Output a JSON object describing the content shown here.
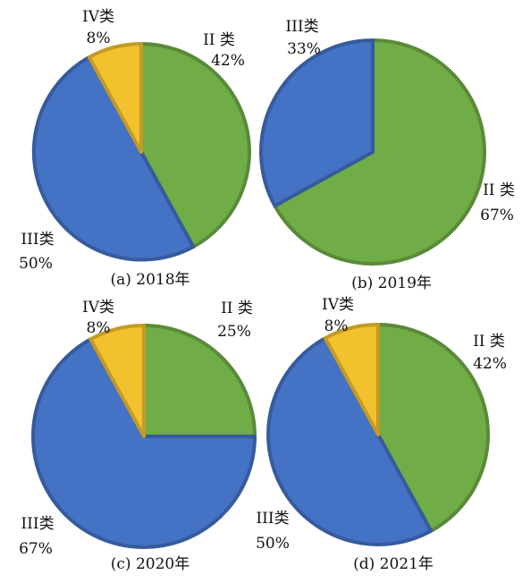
{
  "chart_data": [
    {
      "type": "pie",
      "caption": "(a) 2018年",
      "slices": [
        {
          "label": "II 类",
          "value": 42,
          "pct_text": "42%",
          "color": "#70ad47"
        },
        {
          "label": "III类",
          "value": 50,
          "pct_text": "50%",
          "color": "#4472c4"
        },
        {
          "label": "IV类",
          "value": 8,
          "pct_text": "8%",
          "color": "#f2c12e"
        }
      ]
    },
    {
      "type": "pie",
      "caption": "(b) 2019年",
      "slices": [
        {
          "label": "II 类",
          "value": 67,
          "pct_text": "67%",
          "color": "#70ad47"
        },
        {
          "label": "III类",
          "value": 33,
          "pct_text": "33%",
          "color": "#4472c4"
        }
      ]
    },
    {
      "type": "pie",
      "caption": "(c) 2020年",
      "slices": [
        {
          "label": "II 类",
          "value": 25,
          "pct_text": "25%",
          "color": "#70ad47"
        },
        {
          "label": "III类",
          "value": 67,
          "pct_text": "67%",
          "color": "#4472c4"
        },
        {
          "label": "IV类",
          "value": 8,
          "pct_text": "8%",
          "color": "#f2c12e"
        }
      ]
    },
    {
      "type": "pie",
      "caption": "(d) 2021年",
      "slices": [
        {
          "label": "II 类",
          "value": 42,
          "pct_text": "42%",
          "color": "#70ad47"
        },
        {
          "label": "III类",
          "value": 50,
          "pct_text": "50%",
          "color": "#4472c4"
        },
        {
          "label": "IV类",
          "value": 8,
          "pct_text": "8%",
          "color": "#f2c12e"
        }
      ]
    }
  ]
}
